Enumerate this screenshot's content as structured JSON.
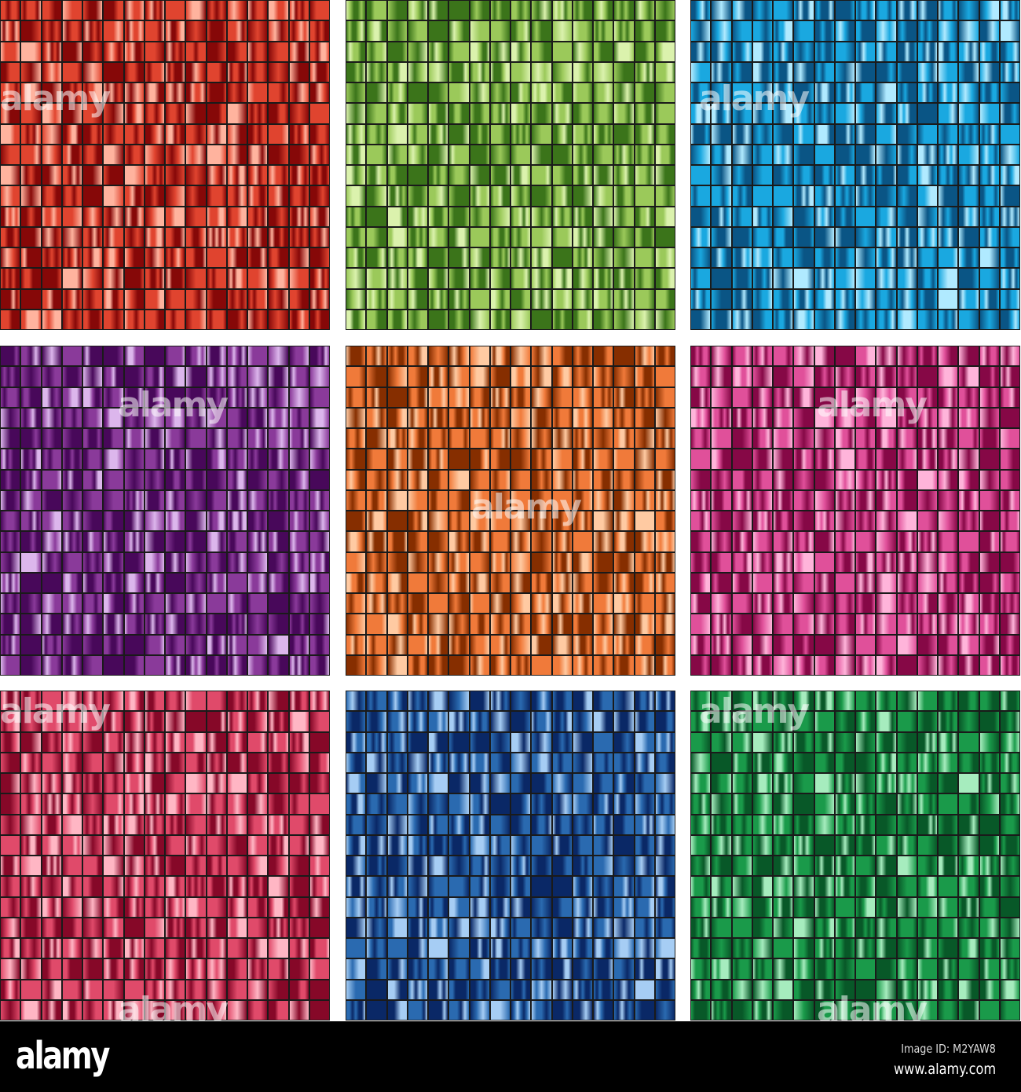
{
  "swatch_sets": [
    {
      "name": "red",
      "base": "#e0442f",
      "dark": "#860808",
      "light": "#ffb39e"
    },
    {
      "name": "lime-green",
      "base": "#9bc95a",
      "dark": "#3b741a",
      "light": "#dbf2ad"
    },
    {
      "name": "cyan",
      "base": "#1aa8e0",
      "dark": "#0a5585",
      "light": "#b0eaff"
    },
    {
      "name": "purple",
      "base": "#8a3a9a",
      "dark": "#48085a",
      "light": "#dcb6ec"
    },
    {
      "name": "orange",
      "base": "#f07a3a",
      "dark": "#862e00",
      "light": "#ffcaa2"
    },
    {
      "name": "pink",
      "base": "#e0509a",
      "dark": "#860846",
      "light": "#ffb4da"
    },
    {
      "name": "rose",
      "base": "#e04a6a",
      "dark": "#860828",
      "light": "#ffb6c4"
    },
    {
      "name": "blue",
      "base": "#2a6ab0",
      "dark": "#0a2866",
      "light": "#a6cdf4"
    },
    {
      "name": "green",
      "base": "#1a9a4a",
      "dark": "#085828",
      "light": "#a6ecbe"
    }
  ],
  "watermark": "alamy",
  "footer": {
    "logo": "alamy",
    "image_id": "Image ID: M2YAW8",
    "url": "www.alamy.com"
  }
}
